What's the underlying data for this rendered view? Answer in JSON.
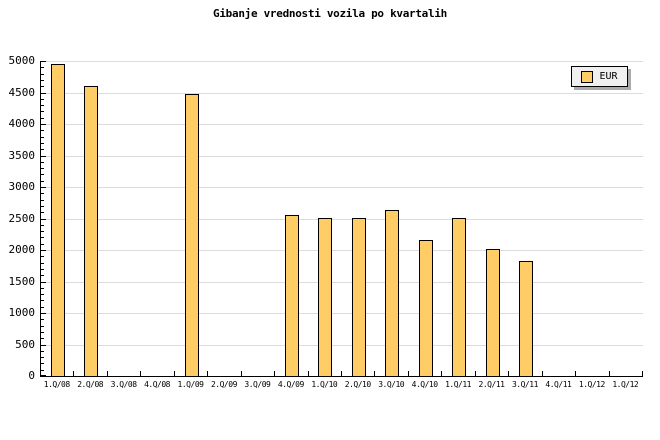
{
  "chart_data": {
    "type": "bar",
    "title": "Gibanje vrednosti vozila po kvartalih",
    "categories": [
      "1.Q/08",
      "2.Q/08",
      "3.Q/08",
      "4.Q/08",
      "1.Q/09",
      "2.Q/09",
      "3.Q/09",
      "4.Q/09",
      "1.Q/10",
      "2.Q/10",
      "3.Q/10",
      "4.Q/10",
      "1.Q/11",
      "2.Q/11",
      "3.Q/11",
      "4.Q/11",
      "1.Q/12",
      "1.Q/12"
    ],
    "series": [
      {
        "name": "EUR",
        "values": [
          4950,
          4600,
          null,
          null,
          4470,
          null,
          null,
          2560,
          2500,
          2500,
          2640,
          2160,
          2500,
          2020,
          1830,
          null,
          null,
          null
        ]
      }
    ],
    "xlabel": "",
    "ylabel": "",
    "ylim": [
      0,
      5000
    ],
    "ytick_step": 500,
    "ytick_labels": [
      "0",
      "500",
      "1000",
      "1500",
      "2000",
      "2500",
      "3000",
      "3500",
      "4000",
      "4500",
      "5000"
    ],
    "yminor_step": 100,
    "grid": true,
    "legend": {
      "position": "top-right",
      "entries": [
        "EUR"
      ]
    },
    "colors": {
      "bar_fill": "#FFCC66",
      "bar_border": "#000000",
      "gridline": "#DCDCDC",
      "axis": "#000000",
      "text": "#000000",
      "legend_bg": "#F0F0F0",
      "legend_border": "#000000",
      "legend_shadow": "#AAAAAA",
      "background": "#FFFFFF"
    }
  }
}
